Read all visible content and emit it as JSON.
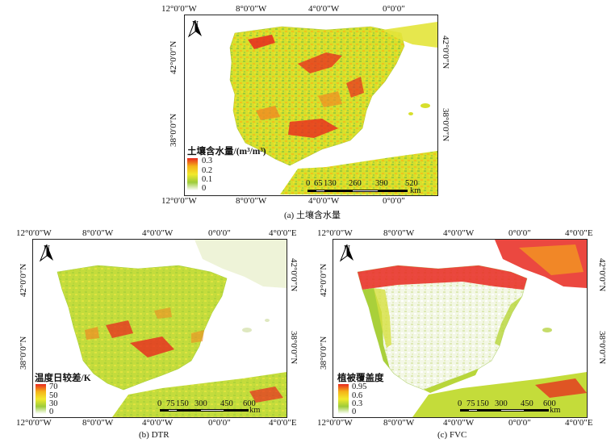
{
  "panel_a": {
    "caption": "(a) 土壤含水量",
    "top_lon": [
      "12°0′0″W",
      "8°0′0″W",
      "4°0′0″W",
      "0°0′0″"
    ],
    "bottom_lon": [
      "12°0′0″W",
      "8°0′0″W",
      "4°0′0″W",
      "0°0′0″"
    ],
    "left_lat": [
      "42°0′0″N",
      "38°0′0″N"
    ],
    "right_lat": [
      "42°0′0″N",
      "38°0′0″N"
    ],
    "north": "N",
    "legend_title": "土壤含水量/(m³/m³)",
    "legend_ticks": [
      "0.3",
      "0.2",
      "0.1",
      "0"
    ],
    "scale_labels": [
      "0",
      "65",
      "130",
      "260",
      "390",
      "520"
    ],
    "scale_unit": "km"
  },
  "panel_b": {
    "caption": "(b) DTR",
    "top_lon": [
      "12°0′0″W",
      "8°0′0″W",
      "4°0′0″W",
      "0°0′0″",
      "4°0′0″E"
    ],
    "bottom_lon": [
      "12°0′0″W",
      "8°0′0″W",
      "4°0′0″W",
      "0°0′0″",
      "4°0′0″E"
    ],
    "left_lat": [
      "42°0′0″N",
      "38°0′0″N"
    ],
    "right_lat": [
      "42°0′0″N",
      "38°0′0″N"
    ],
    "north": "N",
    "legend_title": "温度日较差/K",
    "legend_ticks": [
      "70",
      "50",
      "30",
      "0"
    ],
    "scale_labels": [
      "0",
      "75",
      "150",
      "300",
      "450",
      "600"
    ],
    "scale_unit": "km"
  },
  "panel_c": {
    "caption": "(c) FVC",
    "top_lon": [
      "12°0′0″W",
      "8°0′0″W",
      "4°0′0″W",
      "0°0′0″",
      "4°0′0″E"
    ],
    "bottom_lon": [
      "12°0′0″W",
      "8°0′0″W",
      "4°0′0″W",
      "0°0′0″",
      "4°0′0″E"
    ],
    "left_lat": [
      "42°0′0″N",
      "38°0′0″N"
    ],
    "right_lat": [
      "42°0′0″N",
      "38°0′0″N"
    ],
    "north": "N",
    "legend_title": "植被覆盖度",
    "legend_ticks": [
      "0.95",
      "0.6",
      "0.3",
      "0"
    ],
    "scale_labels": [
      "0",
      "75",
      "150",
      "300",
      "450",
      "600"
    ],
    "scale_unit": "km"
  },
  "colors": {
    "high": "#e8281e",
    "upper_mid": "#f5b318",
    "mid": "#f2e92c",
    "low": "#9dcc3a",
    "lowest": "#ffffff"
  }
}
